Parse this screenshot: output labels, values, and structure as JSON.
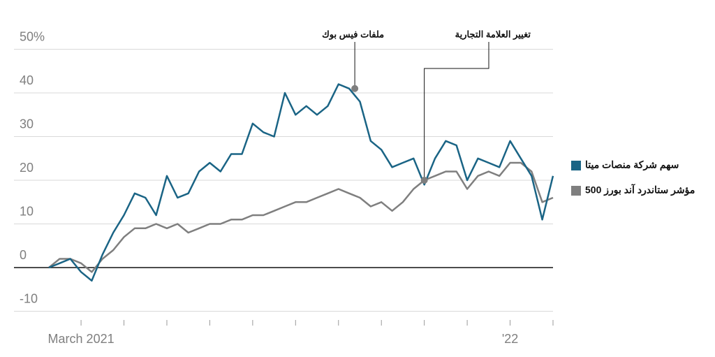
{
  "chart_data": {
    "type": "line",
    "categories": [
      null,
      null,
      null,
      "March 2021",
      null,
      null,
      null,
      null,
      null,
      null,
      null,
      null,
      null,
      null,
      null,
      null,
      null,
      null,
      null,
      null,
      null,
      null,
      null,
      null,
      null,
      null,
      null,
      null,
      null,
      null,
      null,
      null,
      null,
      null,
      null,
      null,
      null,
      null,
      null,
      null,
      null,
      null,
      null,
      "'22",
      null,
      null,
      null,
      null
    ],
    "series": [
      {
        "name": "سهم شركة منصات ميتا",
        "color": "#1a6485",
        "values": [
          0,
          1,
          2,
          -1,
          -3,
          3,
          8,
          12,
          17,
          16,
          12,
          21,
          16,
          17,
          22,
          24,
          22,
          26,
          26,
          33,
          31,
          30,
          40,
          35,
          37,
          35,
          37,
          42,
          41,
          38,
          29,
          27,
          23,
          24,
          25,
          19,
          25,
          29,
          28,
          20,
          25,
          24,
          23,
          29,
          25,
          21,
          11,
          21
        ]
      },
      {
        "name": "مؤشر ستاندرد آند بورز 500",
        "color": "#7f7f7f",
        "values": [
          0,
          2,
          2,
          1,
          -1,
          2,
          4,
          7,
          9,
          9,
          10,
          9,
          10,
          8,
          9,
          10,
          10,
          11,
          11,
          12,
          12,
          13,
          14,
          15,
          15,
          16,
          17,
          18,
          17,
          16,
          14,
          15,
          13,
          15,
          18,
          20,
          21,
          22,
          22,
          18,
          21,
          22,
          21,
          24,
          24,
          22,
          15,
          16
        ]
      }
    ],
    "ylim": [
      -12,
      52
    ],
    "yticks": [
      -10,
      0,
      10,
      20,
      30,
      {
        "value": 50,
        "label": "50%"
      },
      40
    ],
    "grid": true,
    "legend": "right",
    "annotations": [
      "ملفات فيس بوك",
      "تغيير العلامة التجارية"
    ]
  }
}
